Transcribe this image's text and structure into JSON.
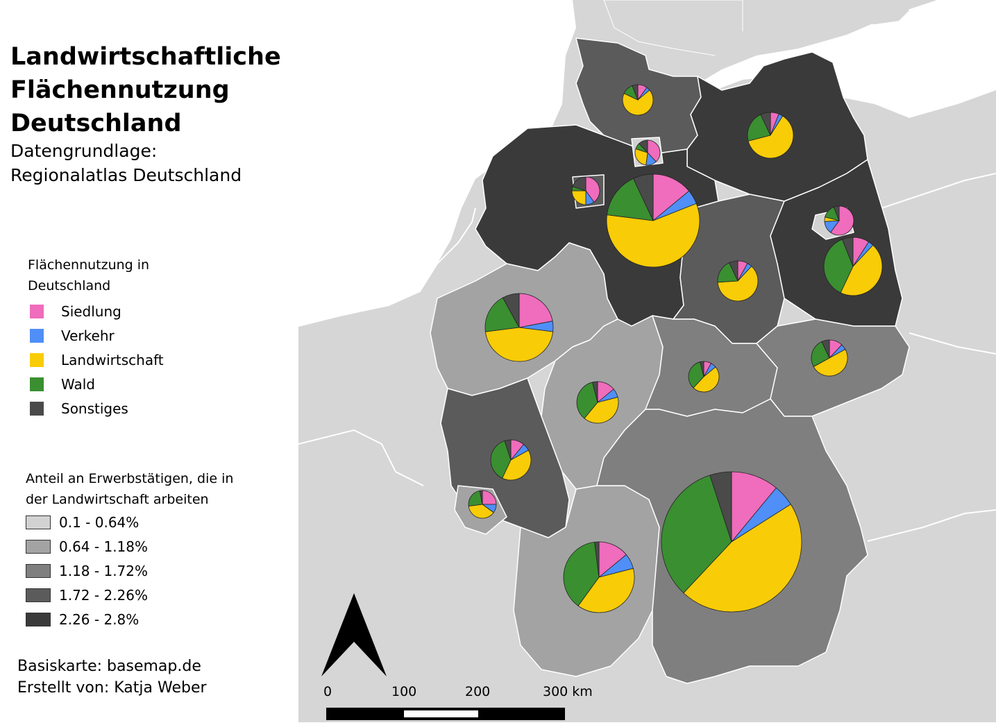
{
  "title": [
    "Landwirtschaftliche",
    "Flächennutzung",
    "Deutschland"
  ],
  "subtitle": [
    "Datengrundlage:",
    "Regionalatlas Deutschland"
  ],
  "legend_landuse": {
    "heading": [
      "Flächennutzung in",
      "Deutschland"
    ],
    "items": [
      {
        "label": "Siedlung",
        "color": "#f06cbc"
      },
      {
        "label": "Verkehr",
        "color": "#4f8ff7"
      },
      {
        "label": "Landwirtschaft",
        "color": "#f8cc07"
      },
      {
        "label": "Wald",
        "color": "#3a8f31"
      },
      {
        "label": "Sonstiges",
        "color": "#4a4a4a"
      }
    ]
  },
  "legend_share": {
    "heading": [
      "Anteil an Erwerbstätigen, die in",
      "der Landwirtschaft arbeiten"
    ],
    "classes": [
      {
        "label": "0.1 - 0.64%",
        "color": "#d2d2d2"
      },
      {
        "label": "0.64 - 1.18%",
        "color": "#a3a3a3"
      },
      {
        "label": "1.18 - 1.72%",
        "color": "#7f7f7f"
      },
      {
        "label": "1.72 - 2.26%",
        "color": "#5b5b5b"
      },
      {
        "label": "2.26 - 2.8%",
        "color": "#3a3a3a"
      }
    ]
  },
  "credits": [
    "Basiskarte: basemap.de",
    "Erstellt von: Katja Weber"
  ],
  "scalebar": {
    "labels": [
      "0",
      "100",
      "200",
      "300 km"
    ]
  },
  "map_colors": {
    "background": "#d6d6d6",
    "water": "#ffffff",
    "border": "#ffffff"
  },
  "pies": [
    {
      "state": "Schleswig-Holstein",
      "class": 4,
      "shares": [
        10,
        4,
        68,
        12,
        6
      ]
    },
    {
      "state": "Hamburg",
      "class": 1,
      "shares": [
        38,
        14,
        28,
        8,
        12
      ]
    },
    {
      "state": "Mecklenburg-Vorpommern",
      "class": 5,
      "shares": [
        6,
        3,
        62,
        22,
        7
      ]
    },
    {
      "state": "Bremen",
      "class": 4,
      "shares": [
        40,
        10,
        25,
        5,
        20
      ]
    },
    {
      "state": "Niedersachsen",
      "class": 5,
      "shares": [
        14,
        5,
        58,
        16,
        7
      ]
    },
    {
      "state": "Berlin",
      "class": 1,
      "shares": [
        60,
        14,
        5,
        15,
        6
      ]
    },
    {
      "state": "Brandenburg",
      "class": 5,
      "shares": [
        9,
        3,
        45,
        37,
        6
      ]
    },
    {
      "state": "Sachsen-Anhalt",
      "class": 4,
      "shares": [
        8,
        4,
        62,
        19,
        7
      ]
    },
    {
      "state": "Nordrhein-Westfalen",
      "class": 2,
      "shares": [
        22,
        5,
        46,
        19,
        8
      ]
    },
    {
      "state": "Hessen",
      "class": 2,
      "shares": [
        14,
        7,
        40,
        35,
        4
      ]
    },
    {
      "state": "Thüringen",
      "class": 3,
      "shares": [
        8,
        6,
        48,
        34,
        4
      ]
    },
    {
      "state": "Sachsen",
      "class": 3,
      "shares": [
        12,
        5,
        50,
        26,
        7
      ]
    },
    {
      "state": "Rheinland-Pfalz",
      "class": 4,
      "shares": [
        11,
        6,
        40,
        38,
        5
      ]
    },
    {
      "state": "Saarland",
      "class": 2,
      "shares": [
        25,
        10,
        38,
        24,
        3
      ]
    },
    {
      "state": "Baden-Württemberg",
      "class": 2,
      "shares": [
        14,
        7,
        39,
        38,
        2
      ]
    },
    {
      "state": "Bayern",
      "class": 3,
      "shares": [
        11,
        5,
        46,
        33,
        5
      ]
    }
  ]
}
